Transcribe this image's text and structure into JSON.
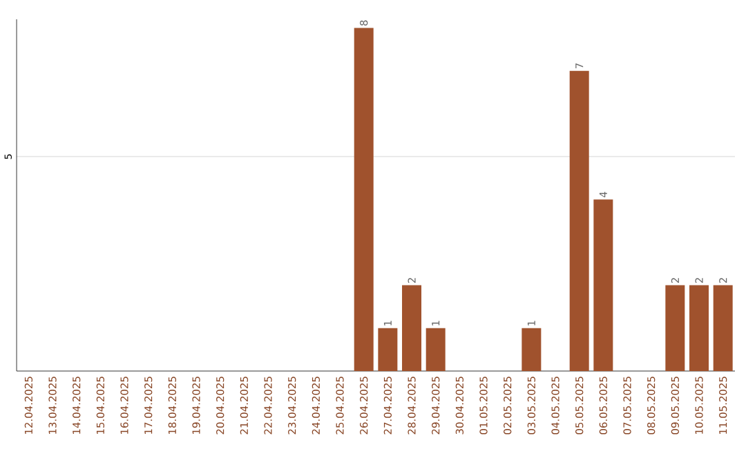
{
  "chart_data": {
    "type": "bar",
    "categories": [
      "12.04.2025",
      "13.04.2025",
      "14.04.2025",
      "15.04.2025",
      "16.04.2025",
      "17.04.2025",
      "18.04.2025",
      "19.04.2025",
      "20.04.2025",
      "21.04.2025",
      "22.04.2025",
      "23.04.2025",
      "24.04.2025",
      "25.04.2025",
      "26.04.2025",
      "27.04.2025",
      "28.04.2025",
      "29.04.2025",
      "30.04.2025",
      "01.05.2025",
      "02.05.2025",
      "03.05.2025",
      "04.05.2025",
      "05.05.2025",
      "06.05.2025",
      "07.05.2025",
      "08.05.2025",
      "09.05.2025",
      "10.05.2025",
      "11.05.2025"
    ],
    "values": [
      null,
      null,
      null,
      null,
      null,
      null,
      null,
      null,
      null,
      null,
      null,
      null,
      null,
      null,
      8,
      1,
      2,
      1,
      null,
      null,
      null,
      1,
      null,
      7,
      4,
      null,
      null,
      2,
      2,
      2
    ],
    "data_labels": true,
    "color": "#a0522d",
    "ylim": [
      0,
      8.2
    ],
    "yticks": [
      5
    ],
    "grid": "y"
  }
}
